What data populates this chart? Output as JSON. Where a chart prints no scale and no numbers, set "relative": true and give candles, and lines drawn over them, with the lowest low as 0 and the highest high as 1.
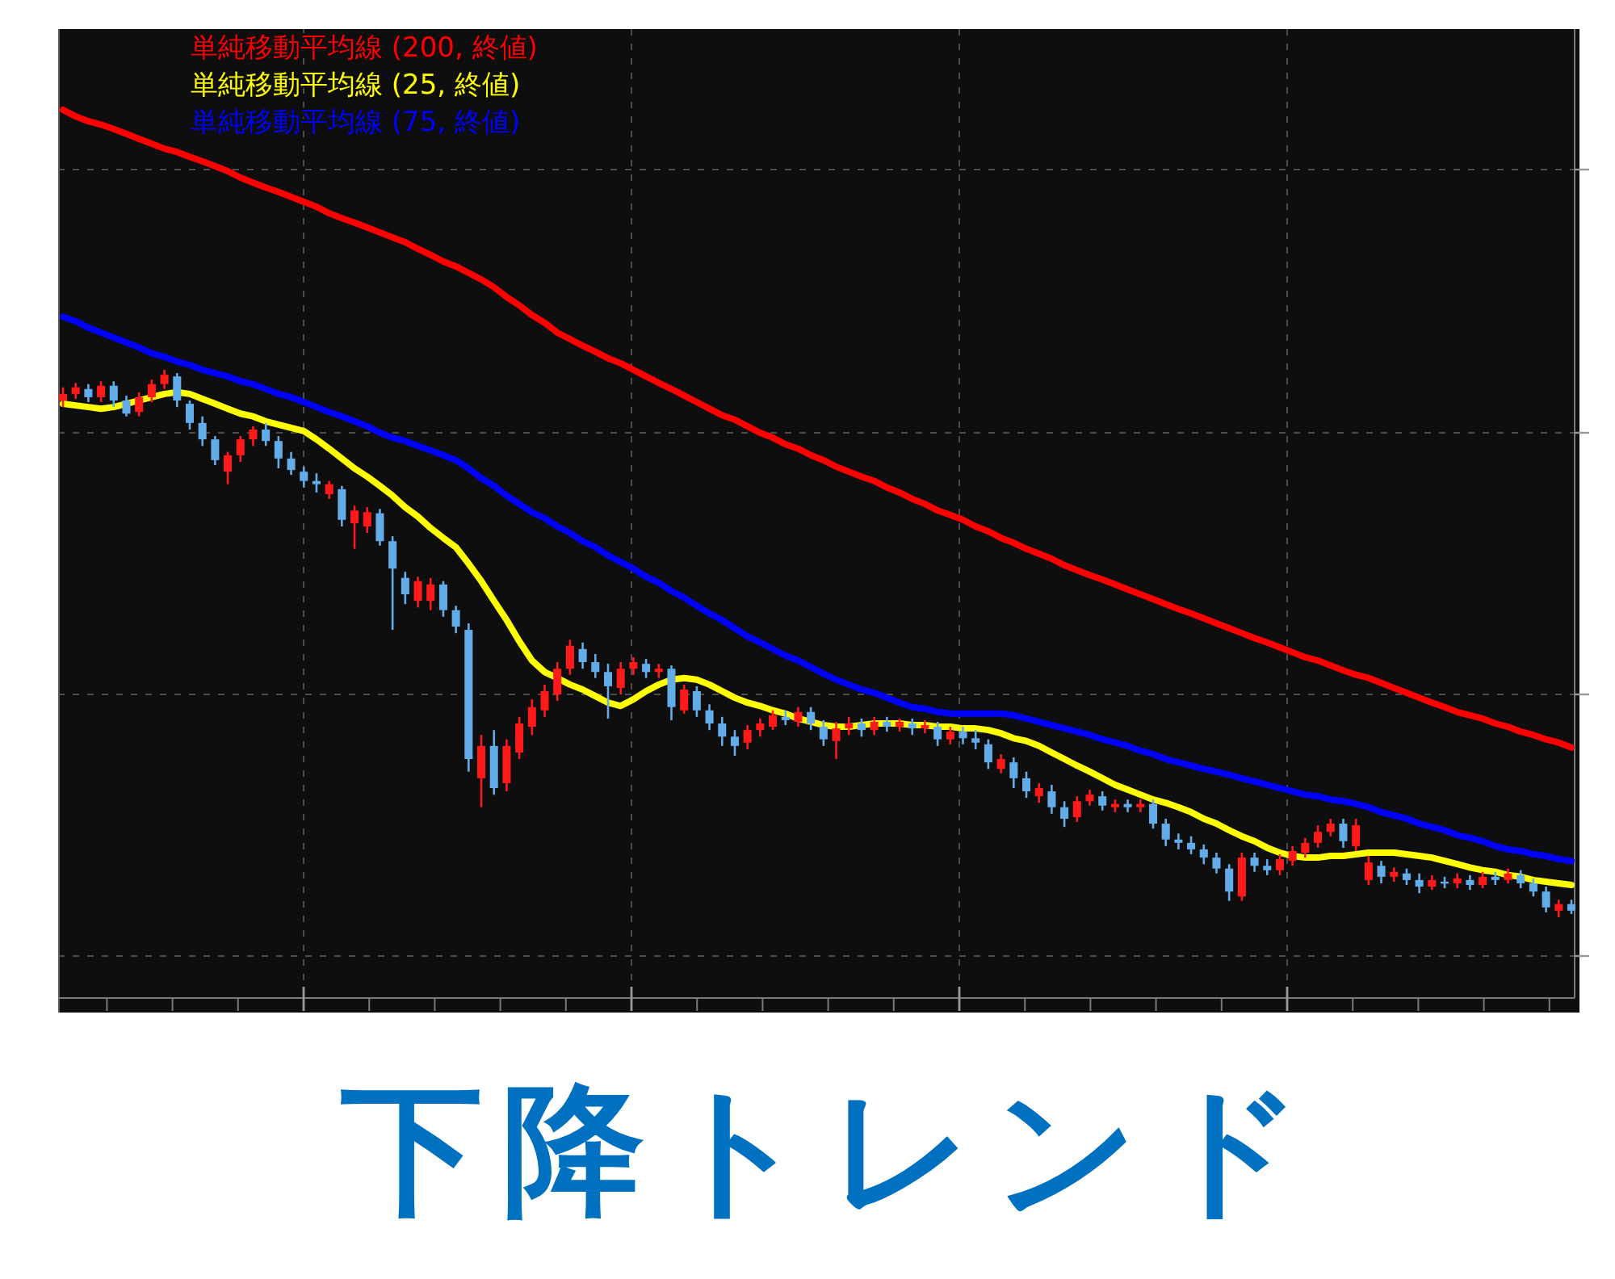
{
  "chart_data": {
    "type": "candlestick",
    "title": "下降トレンド",
    "relative": true,
    "grid": true,
    "legend": "top left",
    "categories": [
      null,
      null,
      null,
      null,
      null,
      null,
      null,
      null,
      null,
      null,
      null,
      null,
      null,
      null,
      null,
      null,
      null,
      null,
      null,
      null,
      null,
      null,
      null,
      null,
      null,
      null,
      null,
      null,
      null,
      null,
      null,
      null,
      null,
      null,
      null,
      null,
      null,
      null,
      null,
      null,
      null,
      null,
      null,
      null,
      null,
      null,
      null,
      null,
      null,
      null,
      null,
      null,
      null,
      null,
      null,
      null,
      null,
      null,
      null,
      null,
      null,
      null,
      null,
      null,
      null,
      null,
      null,
      null,
      null,
      null,
      null,
      null,
      null,
      null,
      null,
      null,
      null,
      null,
      null,
      null,
      null,
      null,
      null,
      null,
      null,
      null,
      null,
      null,
      null,
      null,
      null,
      null,
      null,
      null,
      null,
      null,
      null,
      null,
      null,
      null,
      null,
      null,
      null,
      null,
      null,
      null,
      null,
      null,
      null,
      null,
      null,
      null,
      null,
      null,
      null,
      null,
      null,
      null,
      null,
      null
    ],
    "ohlc": [
      [
        0.944,
        0.968,
        0.932,
        0.956
      ],
      [
        0.956,
        0.976,
        0.947,
        0.968
      ],
      [
        0.965,
        0.974,
        0.941,
        0.95
      ],
      [
        0.95,
        0.979,
        0.941,
        0.971
      ],
      [
        0.971,
        0.979,
        0.932,
        0.944
      ],
      [
        0.944,
        0.953,
        0.915,
        0.92
      ],
      [
        0.923,
        0.959,
        0.915,
        0.95
      ],
      [
        0.95,
        0.982,
        0.941,
        0.974
      ],
      [
        0.974,
        1,
        0.965,
        0.991
      ],
      [
        0.988,
        0.994,
        0.932,
        0.944
      ],
      [
        0.938,
        0.944,
        0.891,
        0.903
      ],
      [
        0.903,
        0.915,
        0.861,
        0.873
      ],
      [
        0.873,
        0.879,
        0.826,
        0.835
      ],
      [
        0.814,
        0.85,
        0.791,
        0.844
      ],
      [
        0.844,
        0.879,
        0.832,
        0.873
      ],
      [
        0.873,
        0.897,
        0.861,
        0.891
      ],
      [
        0.891,
        0.903,
        0.861,
        0.87
      ],
      [
        0.87,
        0.879,
        0.82,
        0.838
      ],
      [
        0.838,
        0.85,
        0.808,
        0.817
      ],
      [
        0.814,
        0.823,
        0.785,
        0.797
      ],
      [
        0.797,
        0.811,
        0.776,
        0.791
      ],
      [
        0.773,
        0.797,
        0.764,
        0.791
      ],
      [
        0.782,
        0.788,
        0.714,
        0.726
      ],
      [
        0.72,
        0.752,
        0.673,
        0.743
      ],
      [
        0.714,
        0.749,
        0.702,
        0.74
      ],
      [
        0.738,
        0.746,
        0.679,
        0.687
      ],
      [
        0.687,
        0.696,
        0.525,
        0.637
      ],
      [
        0.62,
        0.631,
        0.572,
        0.59
      ],
      [
        0.578,
        0.622,
        0.566,
        0.614
      ],
      [
        0.578,
        0.62,
        0.561,
        0.608
      ],
      [
        0.608,
        0.614,
        0.549,
        0.561
      ],
      [
        0.561,
        0.569,
        0.519,
        0.531
      ],
      [
        0.525,
        0.537,
        0.266,
        0.289
      ],
      [
        0.254,
        0.333,
        0.201,
        0.313
      ],
      [
        0.313,
        0.342,
        0.224,
        0.236
      ],
      [
        0.245,
        0.325,
        0.23,
        0.313
      ],
      [
        0.301,
        0.366,
        0.289,
        0.354
      ],
      [
        0.348,
        0.398,
        0.333,
        0.384
      ],
      [
        0.378,
        0.425,
        0.366,
        0.413
      ],
      [
        0.407,
        0.466,
        0.395,
        0.454
      ],
      [
        0.454,
        0.507,
        0.443,
        0.496
      ],
      [
        0.49,
        0.502,
        0.454,
        0.466
      ],
      [
        0.466,
        0.481,
        0.437,
        0.448
      ],
      [
        0.448,
        0.463,
        0.363,
        0.422
      ],
      [
        0.419,
        0.466,
        0.407,
        0.454
      ],
      [
        0.454,
        0.475,
        0.443,
        0.466
      ],
      [
        0.463,
        0.472,
        0.437,
        0.448
      ],
      [
        0.448,
        0.463,
        0.437,
        0.454
      ],
      [
        0.454,
        0.46,
        0.36,
        0.384
      ],
      [
        0.378,
        0.425,
        0.372,
        0.416
      ],
      [
        0.413,
        0.422,
        0.366,
        0.378
      ],
      [
        0.378,
        0.389,
        0.342,
        0.354
      ],
      [
        0.354,
        0.366,
        0.313,
        0.33
      ],
      [
        0.33,
        0.342,
        0.295,
        0.313
      ],
      [
        0.319,
        0.351,
        0.307,
        0.342
      ],
      [
        0.342,
        0.363,
        0.33,
        0.354
      ],
      [
        0.348,
        0.378,
        0.342,
        0.369
      ],
      [
        0.366,
        0.378,
        0.351,
        0.36
      ],
      [
        0.357,
        0.384,
        0.348,
        0.375
      ],
      [
        0.375,
        0.384,
        0.342,
        0.354
      ],
      [
        0.348,
        0.36,
        0.313,
        0.325
      ],
      [
        0.322,
        0.357,
        0.289,
        0.345
      ],
      [
        0.345,
        0.366,
        0.333,
        0.354
      ],
      [
        0.354,
        0.363,
        0.33,
        0.342
      ],
      [
        0.342,
        0.366,
        0.333,
        0.357
      ],
      [
        0.357,
        0.366,
        0.339,
        0.348
      ],
      [
        0.348,
        0.363,
        0.339,
        0.357
      ],
      [
        0.354,
        0.363,
        0.333,
        0.345
      ],
      [
        0.345,
        0.36,
        0.336,
        0.351
      ],
      [
        0.348,
        0.357,
        0.313,
        0.325
      ],
      [
        0.325,
        0.348,
        0.316,
        0.339
      ],
      [
        0.339,
        0.348,
        0.316,
        0.327
      ],
      [
        0.327,
        0.342,
        0.307,
        0.319
      ],
      [
        0.316,
        0.325,
        0.271,
        0.283
      ],
      [
        0.271,
        0.298,
        0.263,
        0.289
      ],
      [
        0.283,
        0.292,
        0.236,
        0.254
      ],
      [
        0.254,
        0.266,
        0.218,
        0.23
      ],
      [
        0.221,
        0.245,
        0.209,
        0.236
      ],
      [
        0.23,
        0.242,
        0.189,
        0.201
      ],
      [
        0.201,
        0.212,
        0.165,
        0.18
      ],
      [
        0.183,
        0.221,
        0.174,
        0.212
      ],
      [
        0.212,
        0.233,
        0.204,
        0.224
      ],
      [
        0.221,
        0.23,
        0.195,
        0.204
      ],
      [
        0.201,
        0.215,
        0.192,
        0.207
      ],
      [
        0.207,
        0.215,
        0.192,
        0.201
      ],
      [
        0.201,
        0.215,
        0.192,
        0.207
      ],
      [
        0.207,
        0.215,
        0.162,
        0.171
      ],
      [
        0.171,
        0.18,
        0.13,
        0.142
      ],
      [
        0.142,
        0.153,
        0.124,
        0.136
      ],
      [
        0.136,
        0.148,
        0.115,
        0.124
      ],
      [
        0.124,
        0.133,
        0.097,
        0.109
      ],
      [
        0.109,
        0.118,
        0.08,
        0.089
      ],
      [
        0.089,
        0.097,
        0.03,
        0.047
      ],
      [
        0.038,
        0.118,
        0.03,
        0.109
      ],
      [
        0.109,
        0.118,
        0.083,
        0.094
      ],
      [
        0.094,
        0.106,
        0.077,
        0.086
      ],
      [
        0.086,
        0.115,
        0.077,
        0.106
      ],
      [
        0.103,
        0.13,
        0.094,
        0.121
      ],
      [
        0.118,
        0.145,
        0.109,
        0.136
      ],
      [
        0.136,
        0.168,
        0.127,
        0.156
      ],
      [
        0.156,
        0.18,
        0.148,
        0.171
      ],
      [
        0.171,
        0.18,
        0.127,
        0.139
      ],
      [
        0.13,
        0.18,
        0.121,
        0.168
      ],
      [
        0.068,
        0.112,
        0.059,
        0.1
      ],
      [
        0.094,
        0.103,
        0.062,
        0.074
      ],
      [
        0.074,
        0.091,
        0.065,
        0.083
      ],
      [
        0.08,
        0.089,
        0.059,
        0.068
      ],
      [
        0.068,
        0.08,
        0.044,
        0.056
      ],
      [
        0.056,
        0.077,
        0.05,
        0.068
      ],
      [
        0.065,
        0.074,
        0.053,
        0.062
      ],
      [
        0.062,
        0.08,
        0.053,
        0.071
      ],
      [
        0.068,
        0.077,
        0.05,
        0.059
      ],
      [
        0.059,
        0.083,
        0.053,
        0.074
      ],
      [
        0.074,
        0.083,
        0.059,
        0.068
      ],
      [
        0.068,
        0.089,
        0.062,
        0.08
      ],
      [
        0.077,
        0.086,
        0.053,
        0.062
      ],
      [
        0.062,
        0.071,
        0.038,
        0.047
      ],
      [
        0.047,
        0.056,
        0.009,
        0.018
      ],
      [
        0.012,
        0.032,
        0,
        0.024
      ],
      [
        0.024,
        0.032,
        0.006,
        0.012
      ]
    ],
    "colors": [
      "#ff1a1a",
      "#ff1a1a",
      "#62acea",
      "#ff1a1a",
      "#62acea",
      "#62acea",
      "#ff1a1a",
      "#ff1a1a",
      "#ff1a1a",
      "#62acea",
      "#62acea",
      "#62acea",
      "#62acea",
      "#ff1a1a",
      "#ff1a1a",
      "#ff1a1a",
      "#62acea",
      "#62acea",
      "#62acea",
      "#62acea",
      "#62acea",
      "#ff1a1a",
      "#62acea",
      "#ff1a1a",
      "#ff1a1a",
      "#62acea",
      "#62acea",
      "#62acea",
      "#ff1a1a",
      "#ff1a1a",
      "#62acea",
      "#62acea",
      "#62acea",
      "#ff1a1a",
      "#62acea",
      "#ff1a1a",
      "#ff1a1a",
      "#ff1a1a",
      "#ff1a1a",
      "#ff1a1a",
      "#ff1a1a",
      "#62acea",
      "#62acea",
      "#62acea",
      "#ff1a1a",
      "#ff1a1a",
      "#62acea",
      "#ff1a1a",
      "#62acea",
      "#ff1a1a",
      "#62acea",
      "#62acea",
      "#62acea",
      "#62acea",
      "#ff1a1a",
      "#ff1a1a",
      "#ff1a1a",
      "#62acea",
      "#ff1a1a",
      "#62acea",
      "#62acea",
      "#ff1a1a",
      "#ff1a1a",
      "#62acea",
      "#ff1a1a",
      "#62acea",
      "#ff1a1a",
      "#62acea",
      "#ff1a1a",
      "#62acea",
      "#ff1a1a",
      "#62acea",
      "#62acea",
      "#62acea",
      "#ff1a1a",
      "#62acea",
      "#62acea",
      "#ff1a1a",
      "#62acea",
      "#62acea",
      "#ff1a1a",
      "#ff1a1a",
      "#62acea",
      "#ff1a1a",
      "#62acea",
      "#ff1a1a",
      "#62acea",
      "#62acea",
      "#62acea",
      "#62acea",
      "#62acea",
      "#62acea",
      "#62acea",
      "#ff1a1a",
      "#62acea",
      "#62acea",
      "#ff1a1a",
      "#ff1a1a",
      "#ff1a1a",
      "#ff1a1a",
      "#ff1a1a",
      "#62acea",
      "#ff1a1a",
      "#ff1a1a",
      "#62acea",
      "#ff1a1a",
      "#62acea",
      "#62acea",
      "#ff1a1a",
      "#62acea",
      "#ff1a1a",
      "#62acea",
      "#ff1a1a",
      "#62acea",
      "#ff1a1a",
      "#62acea",
      "#62acea",
      "#62acea",
      "#ff1a1a",
      "#62acea"
    ],
    "series": [
      {
        "name": "単純移動平均線 (200, 終値)",
        "type": "line",
        "color": "#ff0000",
        "values": [
          1.475,
          1.463,
          1.454,
          1.448,
          1.44,
          1.431,
          1.422,
          1.413,
          1.404,
          1.398,
          1.389,
          1.381,
          1.372,
          1.363,
          1.351,
          1.342,
          1.333,
          1.325,
          1.316,
          1.307,
          1.298,
          1.286,
          1.277,
          1.269,
          1.26,
          1.251,
          1.242,
          1.233,
          1.221,
          1.21,
          1.198,
          1.189,
          1.177,
          1.165,
          1.151,
          1.133,
          1.118,
          1.1,
          1.086,
          1.068,
          1.056,
          1.044,
          1.033,
          1.021,
          1.012,
          1,
          0.988,
          0.976,
          0.965,
          0.953,
          0.941,
          0.929,
          0.917,
          0.909,
          0.897,
          0.885,
          0.876,
          0.864,
          0.856,
          0.844,
          0.835,
          0.823,
          0.814,
          0.805,
          0.797,
          0.785,
          0.776,
          0.764,
          0.755,
          0.743,
          0.735,
          0.726,
          0.714,
          0.705,
          0.693,
          0.684,
          0.673,
          0.664,
          0.655,
          0.643,
          0.634,
          0.625,
          0.617,
          0.608,
          0.599,
          0.59,
          0.581,
          0.572,
          0.563,
          0.555,
          0.546,
          0.537,
          0.528,
          0.519,
          0.51,
          0.502,
          0.493,
          0.484,
          0.475,
          0.469,
          0.46,
          0.451,
          0.443,
          0.437,
          0.428,
          0.419,
          0.41,
          0.401,
          0.392,
          0.384,
          0.375,
          0.369,
          0.363,
          0.354,
          0.348,
          0.339,
          0.333,
          0.325,
          0.319,
          0.31
        ]
      },
      {
        "name": "単純移動平均線 (25, 終値)",
        "type": "line",
        "color": "#ffff00",
        "values": [
          0.938,
          0.935,
          0.932,
          0.929,
          0.932,
          0.938,
          0.944,
          0.95,
          0.956,
          0.959,
          0.956,
          0.947,
          0.938,
          0.929,
          0.92,
          0.915,
          0.906,
          0.9,
          0.894,
          0.888,
          0.873,
          0.856,
          0.838,
          0.82,
          0.805,
          0.788,
          0.77,
          0.749,
          0.732,
          0.711,
          0.693,
          0.676,
          0.646,
          0.614,
          0.578,
          0.543,
          0.504,
          0.469,
          0.448,
          0.437,
          0.425,
          0.416,
          0.404,
          0.392,
          0.386,
          0.398,
          0.413,
          0.425,
          0.434,
          0.437,
          0.434,
          0.425,
          0.413,
          0.401,
          0.392,
          0.386,
          0.378,
          0.372,
          0.363,
          0.357,
          0.351,
          0.348,
          0.348,
          0.351,
          0.354,
          0.354,
          0.354,
          0.351,
          0.351,
          0.348,
          0.348,
          0.345,
          0.345,
          0.342,
          0.336,
          0.327,
          0.322,
          0.313,
          0.301,
          0.289,
          0.277,
          0.266,
          0.254,
          0.242,
          0.233,
          0.224,
          0.215,
          0.209,
          0.201,
          0.192,
          0.18,
          0.171,
          0.159,
          0.148,
          0.139,
          0.127,
          0.118,
          0.112,
          0.109,
          0.109,
          0.112,
          0.112,
          0.115,
          0.118,
          0.118,
          0.118,
          0.115,
          0.112,
          0.109,
          0.103,
          0.097,
          0.091,
          0.086,
          0.083,
          0.077,
          0.074,
          0.068,
          0.065,
          0.062,
          0.059
        ]
      },
      {
        "name": "単純移動平均線 (75, 終値)",
        "type": "line",
        "color": "#0000ff",
        "values": [
          1.097,
          1.089,
          1.077,
          1.068,
          1.059,
          1.05,
          1.041,
          1.03,
          1.024,
          1.015,
          1.009,
          1,
          0.994,
          0.988,
          0.979,
          0.974,
          0.965,
          0.956,
          0.95,
          0.941,
          0.932,
          0.923,
          0.915,
          0.906,
          0.897,
          0.885,
          0.876,
          0.87,
          0.861,
          0.853,
          0.844,
          0.835,
          0.82,
          0.802,
          0.788,
          0.77,
          0.755,
          0.74,
          0.729,
          0.714,
          0.702,
          0.687,
          0.676,
          0.661,
          0.649,
          0.637,
          0.622,
          0.611,
          0.596,
          0.584,
          0.569,
          0.555,
          0.543,
          0.528,
          0.513,
          0.502,
          0.49,
          0.478,
          0.469,
          0.457,
          0.445,
          0.434,
          0.425,
          0.416,
          0.41,
          0.401,
          0.392,
          0.384,
          0.381,
          0.375,
          0.372,
          0.372,
          0.372,
          0.372,
          0.372,
          0.369,
          0.363,
          0.357,
          0.351,
          0.345,
          0.339,
          0.333,
          0.325,
          0.319,
          0.313,
          0.304,
          0.298,
          0.289,
          0.283,
          0.277,
          0.271,
          0.266,
          0.26,
          0.254,
          0.248,
          0.242,
          0.236,
          0.23,
          0.224,
          0.221,
          0.215,
          0.212,
          0.207,
          0.201,
          0.192,
          0.186,
          0.18,
          0.171,
          0.165,
          0.159,
          0.15,
          0.145,
          0.139,
          0.13,
          0.124,
          0.121,
          0.115,
          0.112,
          0.106,
          0.103
        ]
      }
    ]
  }
}
